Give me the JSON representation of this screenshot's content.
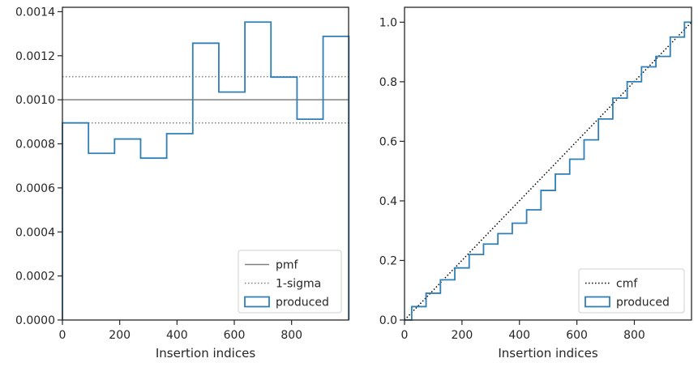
{
  "chart_data": [
    {
      "type": "histogram",
      "xlabel": "Insertion indices",
      "ylabel": "",
      "xlim": [
        0,
        999
      ],
      "ylim": [
        0,
        0.00142
      ],
      "x_ticks": [
        0,
        200,
        400,
        600,
        800
      ],
      "x_tick_labels": [
        "0",
        "200",
        "400",
        "600",
        "800"
      ],
      "y_ticks": [
        0,
        0.0002,
        0.0004,
        0.0006,
        0.0008,
        0.001,
        0.0012,
        0.0014
      ],
      "y_tick_labels": [
        "0.0000",
        "0.0002",
        "0.0004",
        "0.0006",
        "0.0008",
        "0.0010",
        "0.0012",
        "0.0014"
      ],
      "grid": false,
      "legend_position": "bottom-right",
      "reference_lines": [
        {
          "name": "pmf",
          "style": "solid",
          "color": "#808080",
          "y": 0.001
        },
        {
          "name": "1-sigma",
          "style": "dotted",
          "color": "#808080",
          "y": [
            0.000895,
            0.001105
          ]
        }
      ],
      "series": [
        {
          "name": "produced",
          "style": "step",
          "color": "#2f7fb6",
          "bin_edges": [
            0,
            91,
            182,
            273,
            364,
            455,
            546,
            637,
            728,
            819,
            910,
            1000
          ],
          "values": [
            0.000895,
            0.000757,
            0.000822,
            0.000735,
            0.000846,
            0.001257,
            0.001035,
            0.001353,
            0.001103,
            0.000912,
            0.001288
          ]
        }
      ],
      "legend": [
        "pmf",
        "1-sigma",
        "produced"
      ]
    },
    {
      "type": "line",
      "xlabel": "Insertion indices",
      "ylabel": "",
      "xlim": [
        0,
        999
      ],
      "ylim": [
        0,
        1.05
      ],
      "x_ticks": [
        0,
        200,
        400,
        600,
        800
      ],
      "x_tick_labels": [
        "0",
        "200",
        "400",
        "600",
        "800"
      ],
      "y_ticks": [
        0,
        0.2,
        0.4,
        0.6,
        0.8,
        1.0
      ],
      "y_tick_labels": [
        "0.0",
        "0.2",
        "0.4",
        "0.6",
        "0.8",
        "1.0"
      ],
      "grid": false,
      "legend_position": "bottom-right",
      "series": [
        {
          "name": "cmf",
          "style": "dotted",
          "color": "#000000",
          "x": [
            0,
            999
          ],
          "y": [
            0,
            1.0
          ]
        },
        {
          "name": "produced",
          "style": "step",
          "color": "#2f7fb6",
          "x": [
            0,
            50,
            100,
            150,
            200,
            250,
            300,
            350,
            400,
            450,
            500,
            550,
            600,
            650,
            700,
            750,
            800,
            850,
            900,
            950,
            999
          ],
          "y": [
            0,
            0.045,
            0.09,
            0.135,
            0.175,
            0.22,
            0.255,
            0.29,
            0.325,
            0.37,
            0.435,
            0.49,
            0.54,
            0.605,
            0.675,
            0.745,
            0.8,
            0.85,
            0.885,
            0.95,
            1.0
          ]
        }
      ],
      "legend": [
        "cmf",
        "produced"
      ]
    }
  ]
}
